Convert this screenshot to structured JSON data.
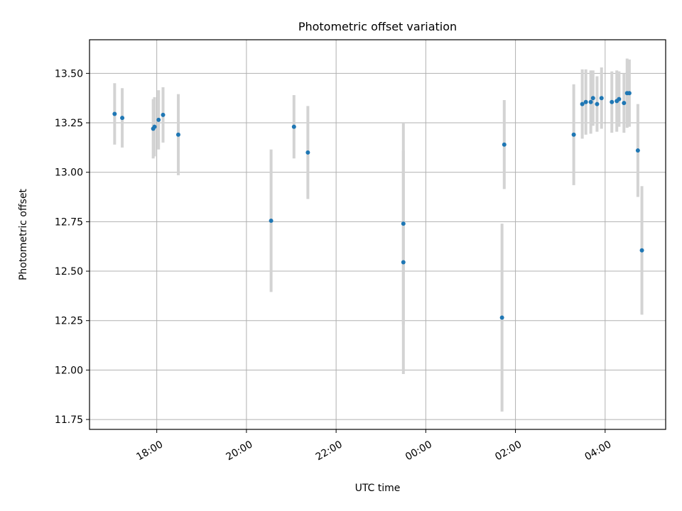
{
  "chart_data": {
    "type": "scatter",
    "title": "Photometric offset variation",
    "xlabel": "UTC time",
    "ylabel": "Photometric offset",
    "xlim_hours": [
      16.5,
      29.35
    ],
    "ylim": [
      11.7,
      13.67
    ],
    "grid": true,
    "x_ticks": [
      {
        "hour": 18,
        "label": "18:00"
      },
      {
        "hour": 20,
        "label": "20:00"
      },
      {
        "hour": 22,
        "label": "22:00"
      },
      {
        "hour": 24,
        "label": "00:00"
      },
      {
        "hour": 26,
        "label": "02:00"
      },
      {
        "hour": 28,
        "label": "04:00"
      }
    ],
    "y_ticks": [
      {
        "value": 11.75,
        "label": "11.75"
      },
      {
        "value": 12.0,
        "label": "12.00"
      },
      {
        "value": 12.25,
        "label": "12.25"
      },
      {
        "value": 12.5,
        "label": "12.50"
      },
      {
        "value": 12.75,
        "label": "12.75"
      },
      {
        "value": 13.0,
        "label": "13.00"
      },
      {
        "value": 13.25,
        "label": "13.25"
      },
      {
        "value": 13.5,
        "label": "13.50"
      }
    ],
    "marker_color": "#1f77b4",
    "errorbar_color": "#d3d3d3",
    "points": [
      {
        "t": 17.06,
        "y": 13.295,
        "err": 0.155
      },
      {
        "t": 17.23,
        "y": 13.275,
        "err": 0.15
      },
      {
        "t": 17.92,
        "y": 13.22,
        "err": 0.15
      },
      {
        "t": 17.95,
        "y": 13.23,
        "err": 0.15
      },
      {
        "t": 18.04,
        "y": 13.265,
        "err": 0.15
      },
      {
        "t": 18.14,
        "y": 13.29,
        "err": 0.14
      },
      {
        "t": 18.48,
        "y": 13.19,
        "err": 0.205
      },
      {
        "t": 20.55,
        "y": 12.755,
        "err": 0.36
      },
      {
        "t": 21.06,
        "y": 13.23,
        "err": 0.16
      },
      {
        "t": 21.37,
        "y": 13.1,
        "err": 0.235
      },
      {
        "t": 23.5,
        "y": 12.74,
        "err": 0.51
      },
      {
        "t": 23.5,
        "y": 12.545,
        "err": 0.565
      },
      {
        "t": 25.7,
        "y": 12.265,
        "err": 0.475
      },
      {
        "t": 25.75,
        "y": 13.14,
        "err": 0.225
      },
      {
        "t": 27.3,
        "y": 13.19,
        "err": 0.255
      },
      {
        "t": 27.49,
        "y": 13.345,
        "err": 0.175
      },
      {
        "t": 27.57,
        "y": 13.355,
        "err": 0.165
      },
      {
        "t": 27.68,
        "y": 13.355,
        "err": 0.16
      },
      {
        "t": 27.73,
        "y": 13.375,
        "err": 0.14
      },
      {
        "t": 27.82,
        "y": 13.345,
        "err": 0.14
      },
      {
        "t": 27.92,
        "y": 13.375,
        "err": 0.155
      },
      {
        "t": 28.15,
        "y": 13.355,
        "err": 0.155
      },
      {
        "t": 28.26,
        "y": 13.36,
        "err": 0.155
      },
      {
        "t": 28.31,
        "y": 13.37,
        "err": 0.14
      },
      {
        "t": 28.42,
        "y": 13.35,
        "err": 0.15
      },
      {
        "t": 28.49,
        "y": 13.4,
        "err": 0.175
      },
      {
        "t": 28.54,
        "y": 13.4,
        "err": 0.17
      },
      {
        "t": 28.73,
        "y": 13.11,
        "err": 0.235
      },
      {
        "t": 28.82,
        "y": 12.605,
        "err": 0.325
      }
    ]
  }
}
